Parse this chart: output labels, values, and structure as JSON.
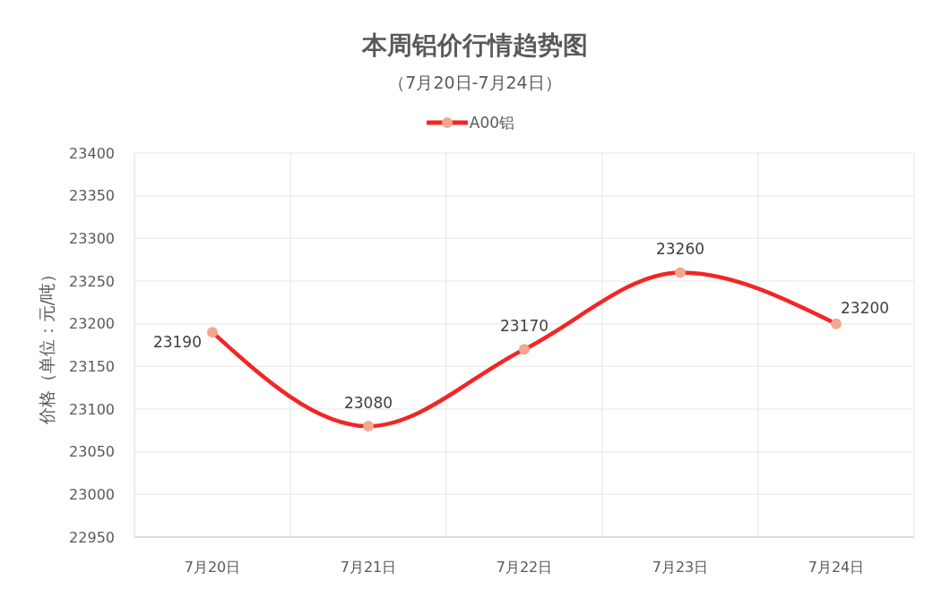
{
  "chart_data": {
    "type": "line",
    "title": "本周铝价行情趋势图",
    "subtitle": "（7月20日-7月24日）",
    "ylabel": "价格（单位：元/吨）",
    "categories": [
      "7月20日",
      "7月21日",
      "7月22日",
      "7月23日",
      "7月24日"
    ],
    "series": [
      {
        "name": "A00铝",
        "color": "#f12626",
        "colors": [
          "#f2a88f",
          "#f2a88f",
          "#f2a88f",
          "#f2a88f",
          "#f2a88f"
        ],
        "values": [
          23190,
          23080,
          23170,
          23260,
          23200
        ]
      }
    ],
    "ylim": [
      22950,
      23400
    ],
    "yticks": [
      22950,
      23000,
      23050,
      23100,
      23150,
      23200,
      23250,
      23300,
      23350,
      23400
    ],
    "grid": true,
    "legend": "top",
    "marker": "circle",
    "line_style": "solid",
    "data_labels": true
  }
}
